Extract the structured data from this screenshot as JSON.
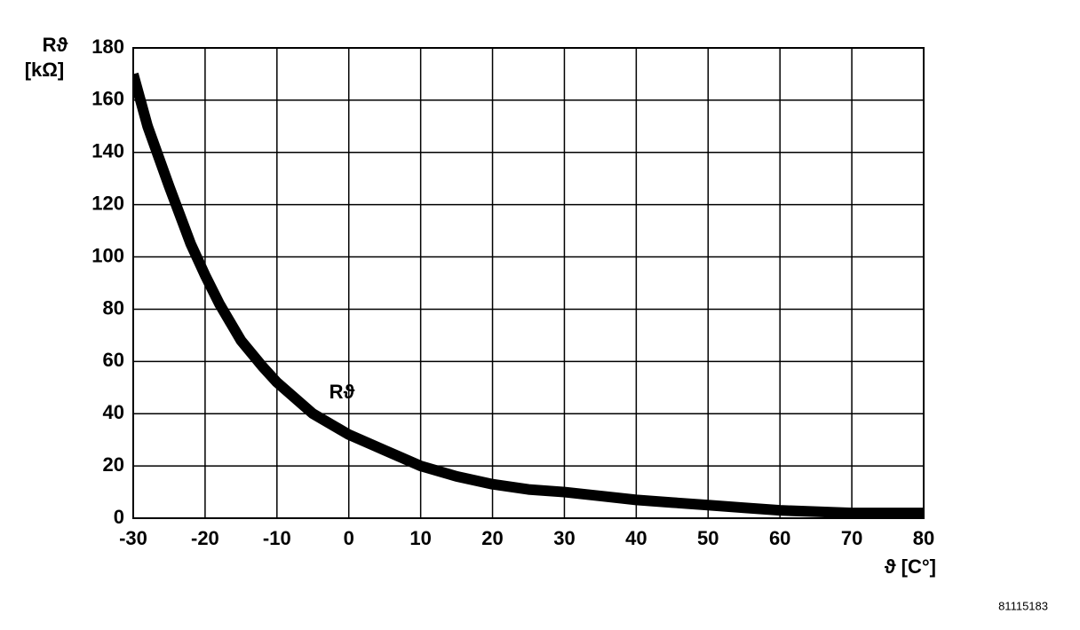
{
  "chart_data": {
    "type": "line",
    "ylabel": [
      "Rϑ",
      "[kΩ]"
    ],
    "xlabel": "ϑ [C°]",
    "figure_id": "81115183",
    "x": [
      -30,
      -28,
      -25,
      -22,
      -20,
      -18,
      -15,
      -12,
      -10,
      -5,
      0,
      5,
      10,
      15,
      20,
      25,
      30,
      35,
      40,
      45,
      50,
      55,
      60,
      65,
      70,
      75,
      80
    ],
    "series": [
      {
        "name": "Rϑ",
        "color": "#000000",
        "values": [
          170,
          150,
          127,
          105,
          93,
          82,
          68,
          58,
          52,
          40,
          32,
          26,
          20,
          16,
          13,
          11,
          10,
          8.5,
          7,
          6,
          5,
          4,
          3,
          2.5,
          2,
          2,
          2
        ]
      }
    ],
    "xlim": [
      -30,
      80
    ],
    "xticks": [
      -30,
      -20,
      -10,
      0,
      10,
      20,
      30,
      40,
      50,
      60,
      70,
      80
    ],
    "ylim": [
      0,
      180
    ],
    "yticks": [
      0,
      20,
      40,
      60,
      80,
      100,
      120,
      140,
      160,
      180
    ],
    "grid": true
  }
}
